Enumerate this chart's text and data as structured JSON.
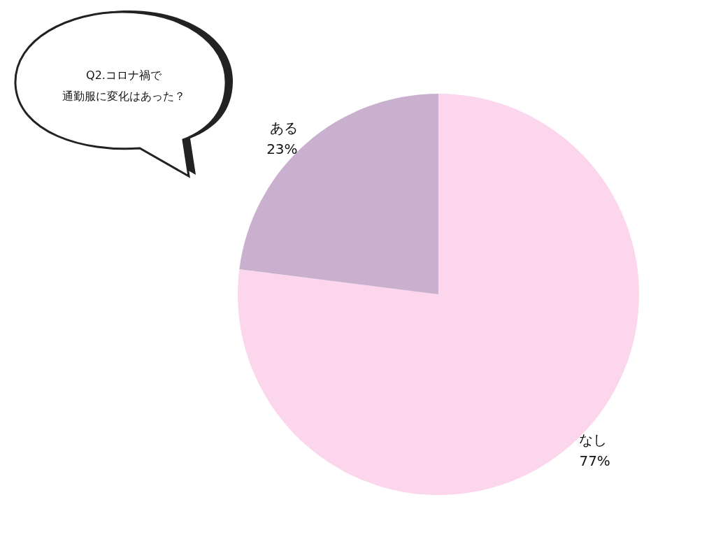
{
  "chart_data": {
    "type": "pie",
    "title": "Q2.コロナ禍で",
    "subtitle": "通勤服に変化はあった？",
    "categories": [
      "なし",
      "ある"
    ],
    "values": [
      77,
      23
    ],
    "value_labels": [
      "77%",
      "23%"
    ],
    "colors": [
      "#fbd6ec",
      "#c9b0ce"
    ],
    "legend": false
  }
}
